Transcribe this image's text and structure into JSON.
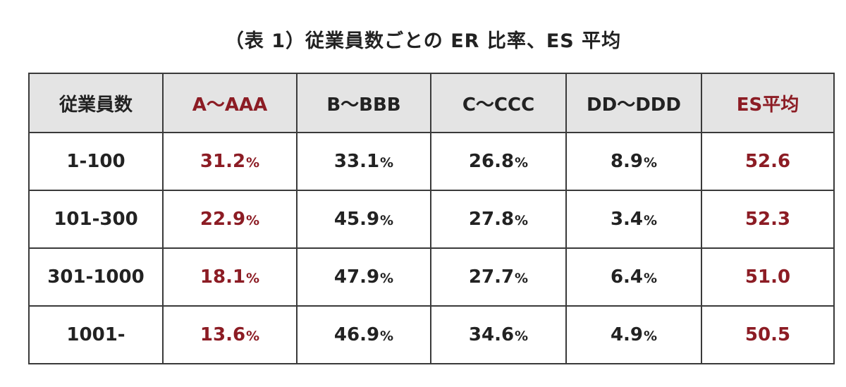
{
  "title": "（表 1）従業員数ごとの ER 比率、ES 平均",
  "colors": {
    "accent": "#8c1c24",
    "text": "#222222",
    "header_bg": "#e4e4e4",
    "border": "#3a3a3a"
  },
  "table": {
    "headers": {
      "label": "従業員数",
      "a": "A〜AAA",
      "b": "B〜BBB",
      "c": "C〜CCC",
      "d": "DD〜DDD",
      "es": "ES平均"
    },
    "percent_sign": "%",
    "rows": [
      {
        "label": "1-100",
        "a": "31.2",
        "b": "33.1",
        "c": "26.8",
        "d": "8.9",
        "es": "52.6"
      },
      {
        "label": "101-300",
        "a": "22.9",
        "b": "45.9",
        "c": "27.8",
        "d": "3.4",
        "es": "52.3"
      },
      {
        "label": "301-1000",
        "a": "18.1",
        "b": "47.9",
        "c": "27.7",
        "d": "6.4",
        "es": "51.0"
      },
      {
        "label": "1001-",
        "a": "13.6",
        "b": "46.9",
        "c": "34.6",
        "d": "4.9",
        "es": "50.5"
      }
    ]
  }
}
